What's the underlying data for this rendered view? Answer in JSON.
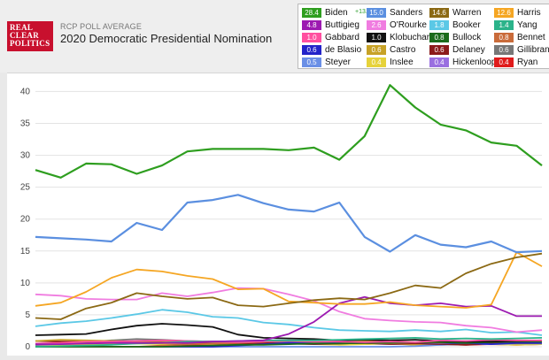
{
  "header": {
    "logo_lines": [
      "REAL",
      "CLEAR",
      "POLITICS"
    ],
    "subtitle": "RCP POLL AVERAGE",
    "title": "2020 Democratic Presidential Nomination"
  },
  "legend": [
    {
      "name": "Biden",
      "value": "28.4",
      "color": "#2e9e1f",
      "spread": "+13.4"
    },
    {
      "name": "Sanders",
      "value": "15.0",
      "color": "#5b8fe0"
    },
    {
      "name": "Warren",
      "value": "14.6",
      "color": "#8b6914"
    },
    {
      "name": "Harris",
      "value": "12.6",
      "color": "#f5a623"
    },
    {
      "name": "Buttigieg",
      "value": "4.8",
      "color": "#9c1ab1"
    },
    {
      "name": "O'Rourke",
      "value": "2.6",
      "color": "#f07ce0"
    },
    {
      "name": "Booker",
      "value": "1.8",
      "color": "#5bc8e6"
    },
    {
      "name": "Yang",
      "value": "1.4",
      "color": "#2bb38a"
    },
    {
      "name": "Gabbard",
      "value": "1.0",
      "color": "#ff4fa0"
    },
    {
      "name": "Klobuchar",
      "value": "1.0",
      "color": "#111111"
    },
    {
      "name": "Bullock",
      "value": "0.8",
      "color": "#1b6b1b"
    },
    {
      "name": "Bennet",
      "value": "0.8",
      "color": "#c96b3a"
    },
    {
      "name": "de Blasio",
      "value": "0.6",
      "color": "#2323c9"
    },
    {
      "name": "Castro",
      "value": "0.6",
      "color": "#c7a227"
    },
    {
      "name": "Delaney",
      "value": "0.6",
      "color": "#8b1a1a"
    },
    {
      "name": "Gillibrand",
      "value": "0.6",
      "color": "#777777"
    },
    {
      "name": "Steyer",
      "value": "0.5",
      "color": "#6a8fe6"
    },
    {
      "name": "Inslee",
      "value": "0.4",
      "color": "#e6d23a"
    },
    {
      "name": "Hickenlooper",
      "value": "0.4",
      "color": "#9a6fe0"
    },
    {
      "name": "Ryan",
      "value": "0.4",
      "color": "#e01b1b"
    }
  ],
  "chart_data": {
    "type": "line",
    "ylim": [
      0,
      42
    ],
    "yticks": [
      "0",
      "5",
      "10",
      "15",
      "20",
      "25",
      "30",
      "35",
      "40"
    ],
    "grid": true,
    "x": [
      0,
      5,
      10,
      15,
      20,
      25,
      30,
      35,
      40,
      45,
      50,
      55,
      60,
      65,
      70,
      75,
      80,
      85,
      90,
      95,
      100
    ],
    "series": [
      {
        "name": "Biden",
        "color": "#2e9e1f",
        "values": [
          27.7,
          26.5,
          28.7,
          28.6,
          27.1,
          28.4,
          30.6,
          31.0,
          31.0,
          31.0,
          30.8,
          31.2,
          29.3,
          33.0,
          41.0,
          37.5,
          34.8,
          33.9,
          32.0,
          31.5,
          28.4
        ]
      },
      {
        "name": "Sanders",
        "color": "#5b8fe0",
        "values": [
          17.2,
          17.0,
          16.8,
          16.5,
          19.4,
          18.3,
          22.6,
          23.0,
          23.8,
          22.5,
          21.5,
          21.2,
          22.6,
          17.2,
          14.9,
          17.5,
          16.0,
          15.6,
          16.5,
          14.8,
          15.0
        ]
      },
      {
        "name": "Warren",
        "color": "#8b6914",
        "values": [
          4.5,
          4.3,
          6.0,
          6.9,
          8.4,
          7.9,
          7.5,
          7.7,
          6.5,
          6.3,
          6.8,
          7.3,
          7.6,
          7.4,
          8.4,
          9.6,
          9.2,
          11.5,
          13.0,
          14.0,
          14.6
        ]
      },
      {
        "name": "Harris",
        "color": "#f5a623",
        "values": [
          6.4,
          6.9,
          8.6,
          10.8,
          12.1,
          11.8,
          11.1,
          10.6,
          9.0,
          9.1,
          7.1,
          6.9,
          6.7,
          6.7,
          7.0,
          6.5,
          6.3,
          6.1,
          6.6,
          14.8,
          12.6
        ]
      },
      {
        "name": "Buttigieg",
        "color": "#9c1ab1",
        "values": [
          0.4,
          0.4,
          0.5,
          0.6,
          0.6,
          0.6,
          0.6,
          0.8,
          0.9,
          1.0,
          2.0,
          3.9,
          6.8,
          7.8,
          6.8,
          6.5,
          6.8,
          6.3,
          6.4,
          4.8,
          4.8
        ]
      },
      {
        "name": "O'Rourke",
        "color": "#f07ce0",
        "values": [
          8.2,
          8.0,
          7.5,
          7.4,
          7.4,
          8.4,
          7.9,
          8.5,
          9.2,
          9.1,
          8.2,
          7.2,
          5.5,
          4.4,
          4.1,
          3.9,
          3.8,
          3.3,
          3.0,
          2.3,
          2.6
        ]
      },
      {
        "name": "Booker",
        "color": "#5bc8e6",
        "values": [
          3.2,
          3.7,
          4.0,
          4.5,
          5.1,
          5.8,
          5.4,
          4.7,
          4.5,
          3.8,
          3.5,
          3.0,
          2.6,
          2.5,
          2.4,
          2.6,
          2.4,
          2.7,
          2.2,
          2.3,
          1.8
        ]
      },
      {
        "name": "Yang",
        "color": "#2bb38a",
        "values": [
          0.0,
          0.1,
          0.2,
          0.3,
          0.5,
          0.6,
          0.8,
          0.8,
          0.9,
          1.0,
          1.0,
          1.0,
          1.1,
          1.2,
          1.3,
          1.4,
          1.2,
          1.3,
          1.2,
          1.3,
          1.4
        ]
      },
      {
        "name": "Gabbard",
        "color": "#ff4fa0",
        "values": [
          0.5,
          0.6,
          0.8,
          0.8,
          0.9,
          1.0,
          0.9,
          0.8,
          0.7,
          0.8,
          0.9,
          0.8,
          0.8,
          0.7,
          0.8,
          0.7,
          1.0,
          0.9,
          1.1,
          1.0,
          1.0
        ]
      },
      {
        "name": "Klobuchar",
        "color": "#111111",
        "values": [
          1.8,
          1.9,
          2.0,
          2.7,
          3.3,
          3.6,
          3.4,
          3.1,
          1.9,
          1.4,
          1.3,
          1.2,
          1.0,
          1.1,
          1.0,
          1.1,
          0.9,
          0.8,
          0.8,
          0.9,
          1.0
        ]
      },
      {
        "name": "Bullock",
        "color": "#1b6b1b",
        "values": [
          0.0,
          0.0,
          0.0,
          0.0,
          0.0,
          0.0,
          0.1,
          0.2,
          0.3,
          0.3,
          0.4,
          0.5,
          0.5,
          0.6,
          0.6,
          0.7,
          0.7,
          0.6,
          0.7,
          0.8,
          0.8
        ]
      },
      {
        "name": "Bennet",
        "color": "#c96b3a",
        "values": [
          0.0,
          0.0,
          0.0,
          0.0,
          0.0,
          0.2,
          0.4,
          0.5,
          0.6,
          0.8,
          1.0,
          0.9,
          0.8,
          0.6,
          0.5,
          0.7,
          0.6,
          0.7,
          0.8,
          0.9,
          0.8
        ]
      },
      {
        "name": "de Blasio",
        "color": "#2323c9",
        "values": [
          0.0,
          0.0,
          0.0,
          0.0,
          0.0,
          0.0,
          0.0,
          0.0,
          0.2,
          0.4,
          0.6,
          0.5,
          0.6,
          0.7,
          0.6,
          0.7,
          0.5,
          0.6,
          0.4,
          0.6,
          0.6
        ]
      },
      {
        "name": "Castro",
        "color": "#c7a227",
        "values": [
          0.9,
          1.1,
          1.0,
          0.9,
          0.8,
          0.9,
          0.7,
          0.8,
          0.7,
          0.8,
          0.9,
          0.8,
          1.0,
          0.9,
          0.8,
          0.7,
          0.8,
          0.9,
          0.8,
          0.7,
          0.6
        ]
      },
      {
        "name": "Delaney",
        "color": "#8b1a1a",
        "values": [
          0.9,
          0.8,
          0.8,
          0.7,
          0.6,
          0.7,
          0.6,
          0.5,
          0.5,
          0.6,
          0.5,
          0.4,
          0.5,
          0.6,
          0.4,
          0.5,
          0.4,
          0.3,
          0.5,
          0.6,
          0.6
        ]
      },
      {
        "name": "Gillibrand",
        "color": "#777777",
        "values": [
          0.3,
          0.5,
          0.7,
          1.0,
          1.2,
          1.1,
          0.9,
          0.8,
          0.7,
          0.6,
          0.7,
          0.6,
          0.5,
          0.6,
          0.5,
          0.6,
          0.7,
          0.5,
          0.6,
          0.5,
          0.6
        ]
      },
      {
        "name": "Steyer",
        "color": "#6a8fe6",
        "values": [
          0.0,
          0.0,
          0.0,
          0.0,
          0.0,
          0.0,
          0.0,
          0.0,
          0.0,
          0.0,
          0.0,
          0.0,
          0.0,
          0.0,
          0.0,
          0.1,
          0.3,
          0.4,
          0.4,
          0.5,
          0.5
        ]
      },
      {
        "name": "Inslee",
        "color": "#e6d23a",
        "values": [
          0.0,
          0.2,
          0.3,
          0.4,
          0.5,
          0.4,
          0.5,
          0.4,
          0.3,
          0.4,
          0.5,
          0.4,
          0.3,
          0.4,
          0.5,
          0.3,
          0.4,
          0.5,
          0.4,
          0.3,
          0.4
        ]
      },
      {
        "name": "Hickenlooper",
        "color": "#9a6fe0",
        "values": [
          0.2,
          0.3,
          0.4,
          0.5,
          0.6,
          0.5,
          0.6,
          0.7,
          0.5,
          0.6,
          0.5,
          0.4,
          0.6,
          0.5,
          0.4,
          0.5,
          0.3,
          0.4,
          0.5,
          0.4,
          0.4
        ]
      },
      {
        "name": "Ryan",
        "color": "#e01b1b",
        "values": [
          0.0,
          0.0,
          0.0,
          0.0,
          0.0,
          0.0,
          0.2,
          0.4,
          0.6,
          0.5,
          0.7,
          0.6,
          0.5,
          0.4,
          0.6,
          0.5,
          0.4,
          0.3,
          0.4,
          0.3,
          0.4
        ]
      }
    ]
  }
}
